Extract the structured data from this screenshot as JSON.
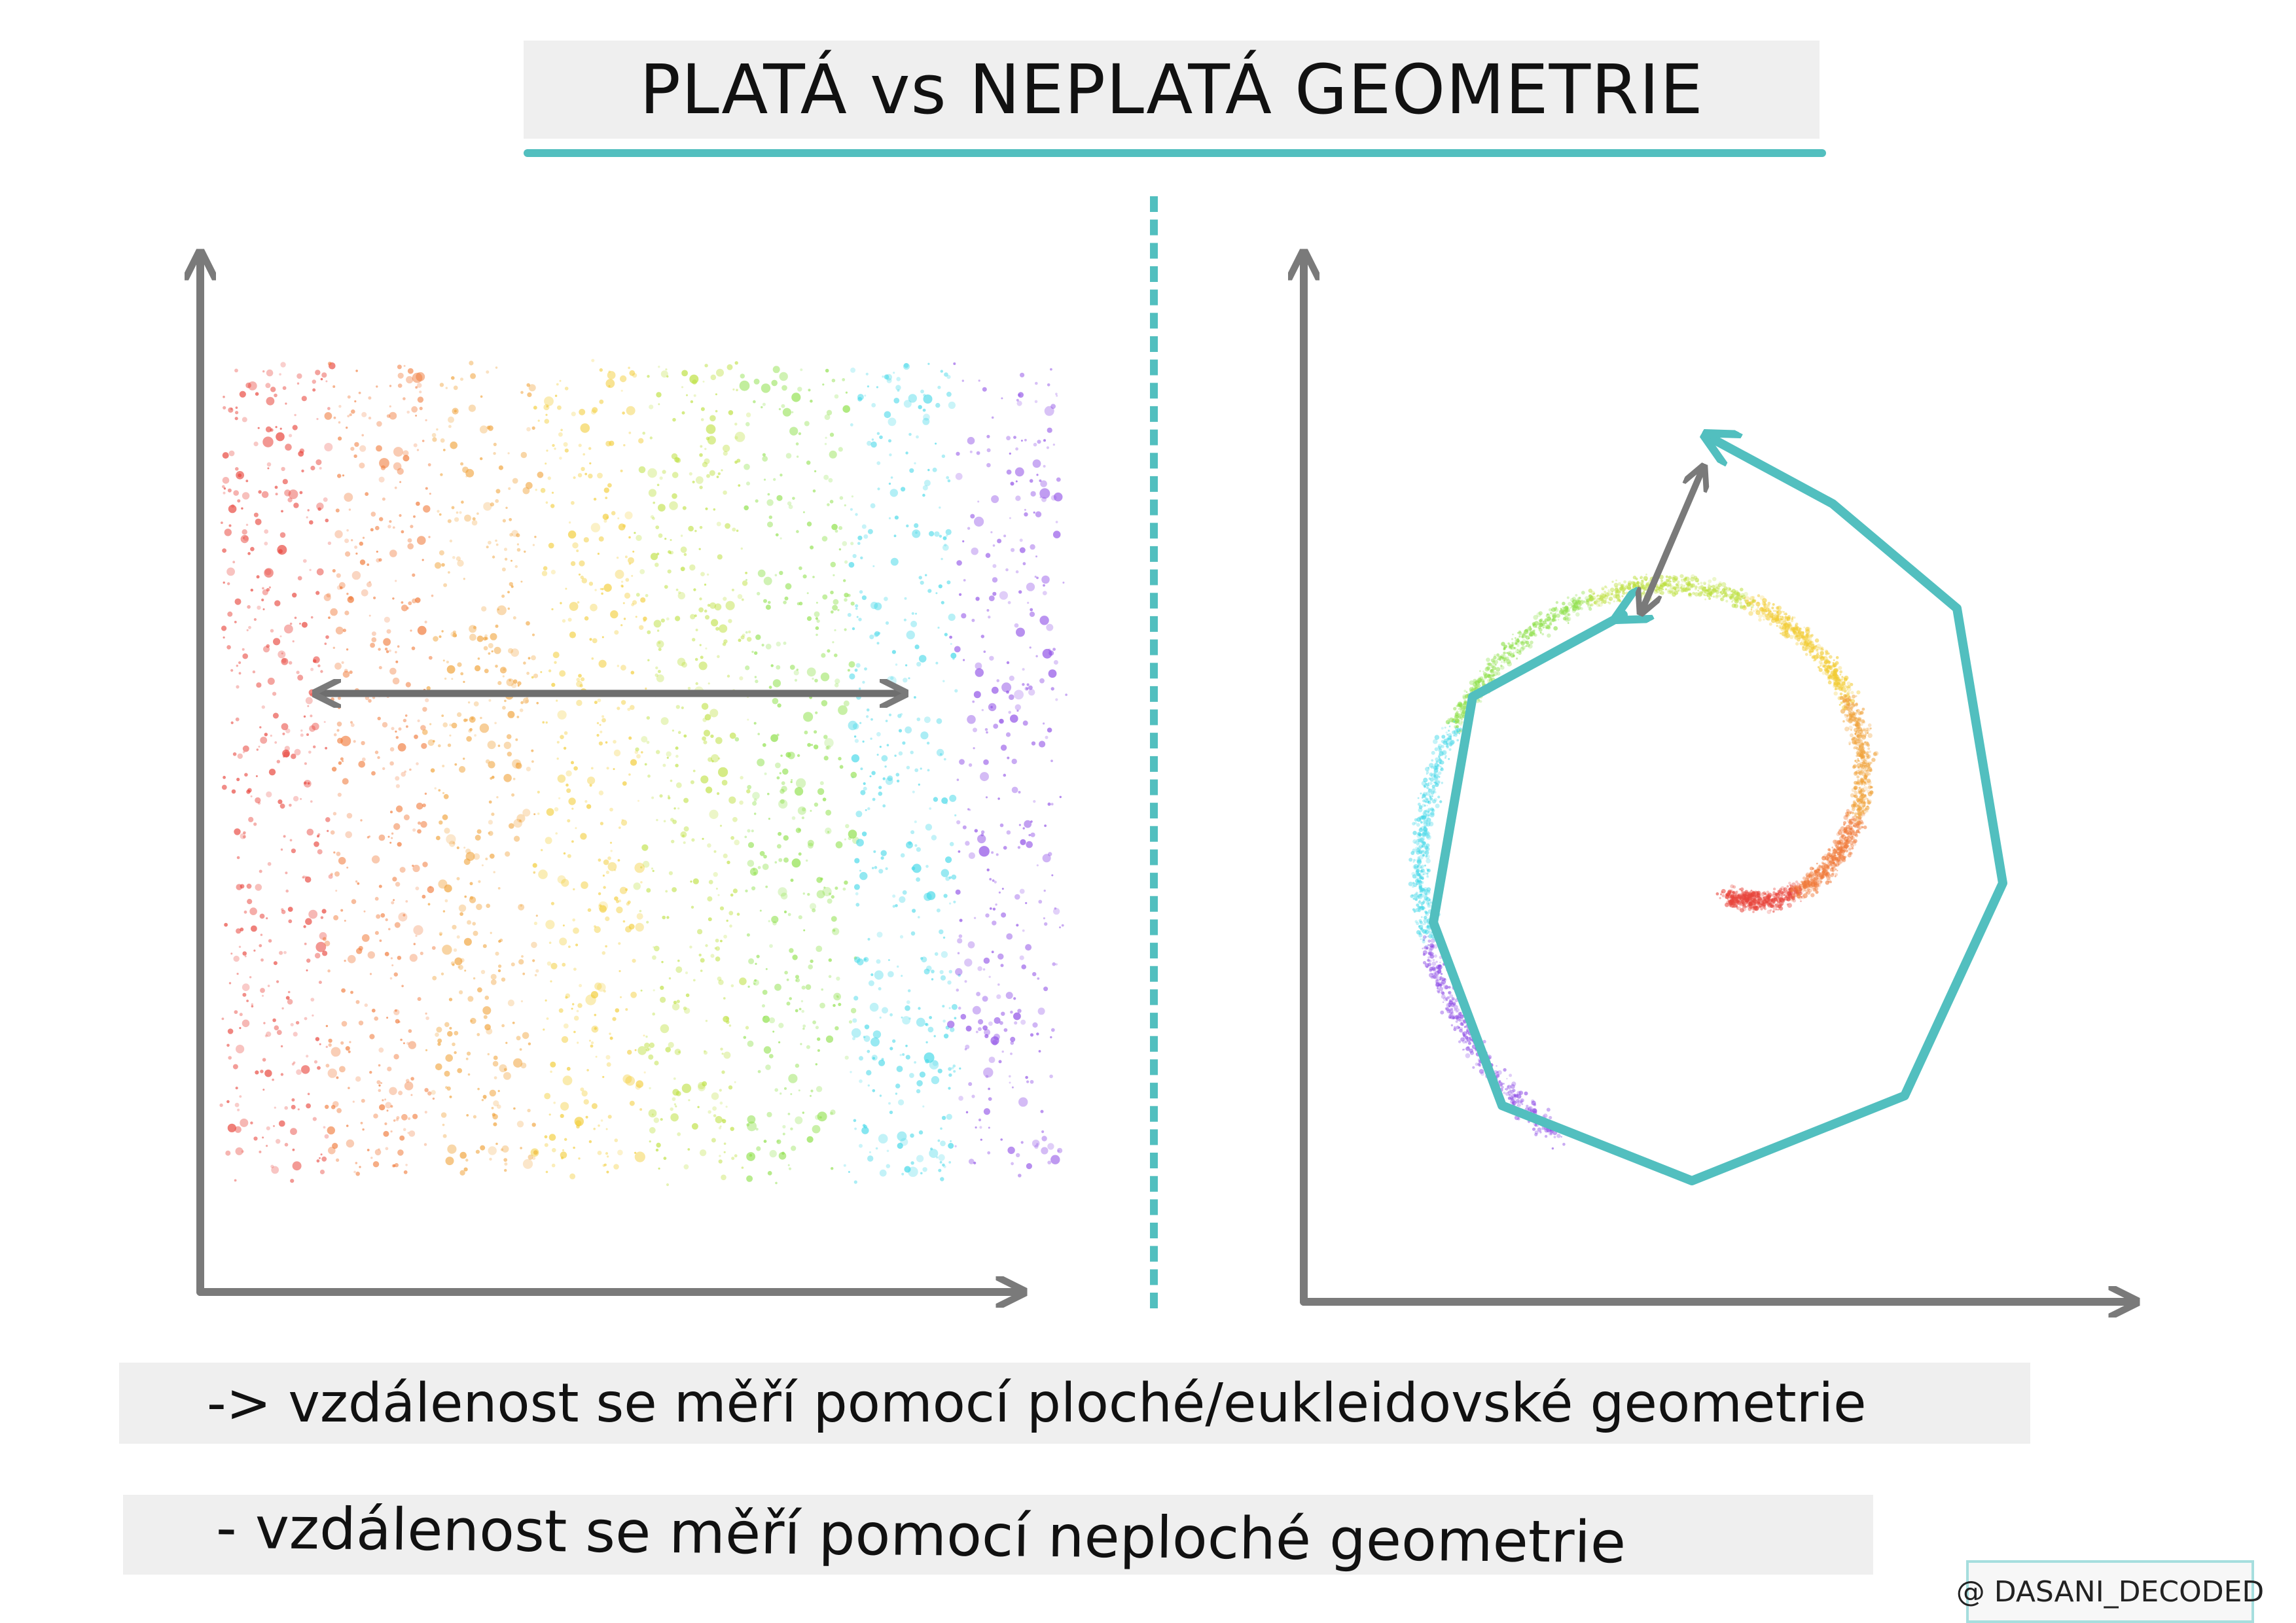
{
  "title": "PLATÁ vs NEPLATÁ GEOMETRIE",
  "captions": {
    "flat": "-> vzdálenost se měří pomocí ploché/eukleidovské geometrie",
    "curved": "- vzdálenost se měří pomocí neploché geometrie"
  },
  "watermark": "@ DASANI_DECODED",
  "colors": {
    "accent": "#52bfbf",
    "axis": "#7a7a7a",
    "caption_bg": "#efefef",
    "spectrum": [
      "#e8453c",
      "#f07a3a",
      "#f0a33c",
      "#f2cc35",
      "#bde040",
      "#8ee04a",
      "#45d8e8",
      "#8f4fe6"
    ]
  },
  "left_panel": {
    "description_shape": "rectangular point cloud with horizontal rainbow gradient",
    "arrow": "double-headed straight arrow (euclidean distance)"
  },
  "right_panel": {
    "description_shape": "spiral point cloud with rainbow gradient",
    "arrows": [
      "short double-headed straight arrow",
      "polygonal path along spiral"
    ]
  }
}
